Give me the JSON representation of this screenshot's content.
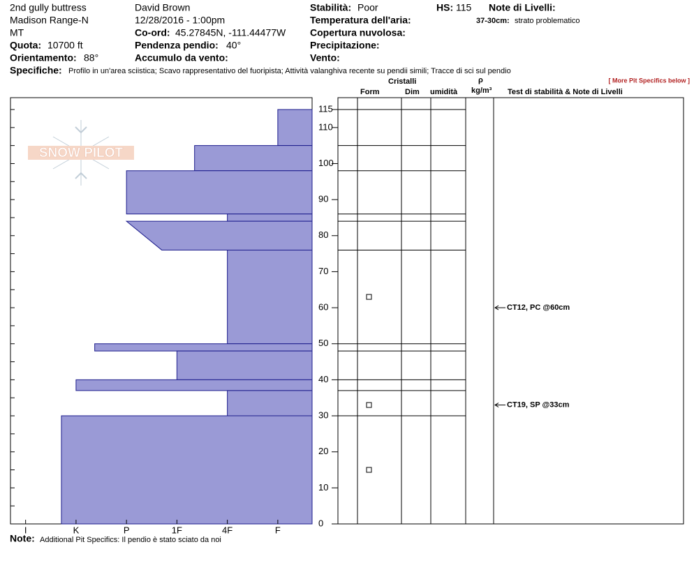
{
  "header": {
    "location": [
      "2nd gully buttress",
      "Madison Range-N",
      "MT"
    ],
    "observer": "David Brown",
    "datetime": "12/28/2016 - 1:00pm",
    "elevation": {
      "label": "Quota:",
      "value": "10700 ft"
    },
    "aspect": {
      "label": "Orientamento:",
      "value": "88°"
    },
    "coord": {
      "label": "Co-ord:",
      "value": "45.27845N, -111.44477W"
    },
    "slope": {
      "label": "Pendenza pendio:",
      "value": "40°"
    },
    "wind_loading": {
      "label": "Accumulo da vento:"
    },
    "stability": {
      "label": "Stabilità:",
      "value": "Poor"
    },
    "hs": {
      "label": "HS:",
      "value": "115"
    },
    "air_temp": {
      "label": "Temperatura dell'aria:"
    },
    "sky": {
      "label": "Copertura nuvolosa:"
    },
    "precip": {
      "label": "Precipitazione:"
    },
    "wind": {
      "label": "Vento:"
    },
    "layer_notes": {
      "label": "Note di Livelli:",
      "items": [
        {
          "range": "37-30cm:",
          "text": "strato problematico"
        }
      ]
    },
    "specifics": {
      "label": "Specifiche:",
      "value": "Profilo in un'area sciistica; Scavo rappresentativo del fuoripista; Attività valanghiva recente su pendii simili; Tracce di sci sul pendio"
    },
    "more_link": "[ More Pit Specifics below ]"
  },
  "logo": "SNOW PILOT",
  "chart_data": {
    "type": "snow-profile",
    "fill": "#9a9ad6",
    "stroke": "#1c1c8c",
    "layers": [
      {
        "top": 115,
        "bottom": 105,
        "hardness_top": 1,
        "hardness_bottom": 1
      },
      {
        "top": 105,
        "bottom": 98,
        "hardness_top": 2.65,
        "hardness_bottom": 2.65
      },
      {
        "top": 98,
        "bottom": 86,
        "hardness_top": 4,
        "hardness_bottom": 4
      },
      {
        "top": 86,
        "bottom": 84,
        "hardness_top": 2,
        "hardness_bottom": 2
      },
      {
        "top": 84,
        "bottom": 76,
        "hardness_top": 4,
        "hardness_bottom": 3.3
      },
      {
        "top": 76,
        "bottom": 50,
        "hardness_top": 2,
        "hardness_bottom": 2
      },
      {
        "top": 50,
        "bottom": 48,
        "hardness_top": 4.63,
        "hardness_bottom": 4.63
      },
      {
        "top": 48,
        "bottom": 40,
        "hardness_top": 3,
        "hardness_bottom": 3
      },
      {
        "top": 40,
        "bottom": 37,
        "hardness_top": 5,
        "hardness_bottom": 5
      },
      {
        "top": 37,
        "bottom": 30,
        "hardness_top": 2,
        "hardness_bottom": 2
      },
      {
        "top": 30,
        "bottom": 0,
        "hardness_top": 5.29,
        "hardness_bottom": 5.29
      }
    ],
    "xlim": [
      0.32,
      6.3
    ],
    "xticks": [
      {
        "value": 6,
        "label": "I"
      },
      {
        "value": 5,
        "label": "K"
      },
      {
        "value": 4,
        "label": "P"
      },
      {
        "value": 3,
        "label": "1F"
      },
      {
        "value": 2,
        "label": "4F"
      },
      {
        "value": 1,
        "label": "F"
      }
    ],
    "ylim": [
      0,
      115
    ],
    "yticks": [
      0,
      10,
      20,
      30,
      40,
      50,
      60,
      70,
      80,
      90,
      100,
      110,
      115
    ],
    "minor_yticks": [
      5,
      15,
      25,
      35,
      45,
      55,
      65,
      75,
      85,
      95,
      105
    ],
    "table_headers": {
      "crystals": "Cristalli",
      "form": "Form",
      "size": "Dim",
      "moisture": "umidità",
      "density_symbol": "ρ",
      "density_unit": "kg/m³",
      "tests": "Test di stabilità & Note di Livelli"
    },
    "grain_symbols": [
      63,
      33,
      15
    ],
    "tests": [
      {
        "label": "CT12, PC @60cm",
        "depth": 60
      },
      {
        "label": "CT19, SP @33cm",
        "depth": 33
      }
    ]
  },
  "footer": {
    "label": "Note:",
    "value": "Additional Pit Specifics: Il pendio è stato sciato da noi"
  }
}
